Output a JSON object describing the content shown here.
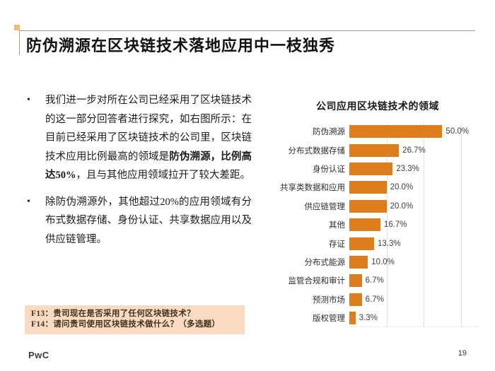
{
  "slide": {
    "title": "防伪溯源在区块链技术落地应用中一枝独秀",
    "logo": "PwC",
    "page_number": "19"
  },
  "bullets": {
    "marker": "•",
    "b1_pre": "我们进一步对所在公司已经采用了区块链技术的这一部分回答者进行探究，如右图所示：在目前已经采用了区块链技术的公司里，区块链技术应用比例最高的领域是",
    "b1_bold": "防伪溯源，比例高达50%",
    "b1_post": "，且与其他应用领域拉开了较大差距。",
    "b2": "除防伪溯源外，其他超过20%的应用领域有分布式数据存储、身份认证、共享数据应用以及供应链管理。"
  },
  "chart_data": {
    "type": "bar",
    "orientation": "horizontal",
    "title": "公司应用区块链技术的领域",
    "categories": [
      "防伪溯源",
      "分布式数据存储",
      "身份认证",
      "共享类数据和应用",
      "供应链管理",
      "其他",
      "存证",
      "分布式能源",
      "监管合规和审计",
      "预测市场",
      "版权管理"
    ],
    "values": [
      50.0,
      26.7,
      23.3,
      20.0,
      20.0,
      16.7,
      13.3,
      10.0,
      6.7,
      6.7,
      3.3
    ],
    "value_labels": [
      "50.0%",
      "26.7%",
      "23.3%",
      "20.0%",
      "20.0%",
      "16.7%",
      "13.3%",
      "10.0%",
      "6.7%",
      "6.7%",
      "3.3%"
    ],
    "xlabel": "",
    "ylabel": "",
    "xlim": [
      0,
      70
    ],
    "gridlines_pct": [
      20,
      40,
      60
    ],
    "grid": "vertical-light",
    "legend": "none",
    "bar_color": "#DD7D1E"
  },
  "footnote": {
    "line1": "F13：贵司现在是否采用了任何区块链技术？",
    "line2": "F14：请问贵司使用区块链技术做什么？（多选题）"
  },
  "colors": {
    "bar_orange": "#DD7D1E",
    "rule_tan": "#B3A073",
    "accent_square": "#EFBA7C",
    "footnote_bg": "#F8DBC2",
    "footnote_text": "#44301E",
    "gridline": "#E2E2E2"
  }
}
